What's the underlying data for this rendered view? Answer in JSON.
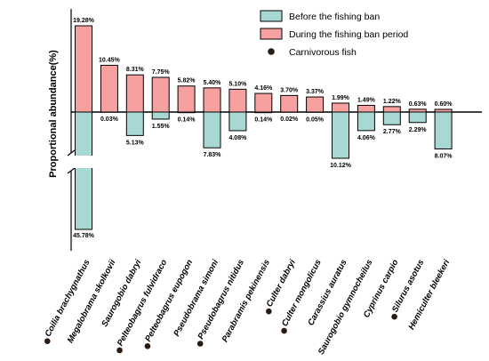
{
  "chart_data": {
    "type": "bar",
    "title": "",
    "xlabel": "",
    "ylabel": "Proportional abundance(%)",
    "categories": [
      "Coilia brachygnathus",
      "Megalobrama skolkovii",
      "Saurogobio dabryi",
      "Pelteobagrus fulvidraco",
      "Pelteobagrus eupogon",
      "Pseudobrama simoni",
      "Pseudobagrus nitidus",
      "Parabramis pekinensis",
      "Culter dabryi",
      "Culter mongolicus",
      "Carassius auratus",
      "Saurogobio gymnocheilus",
      "Cyprinus carpio",
      "Silurus asotus",
      "Hemiculter bleekeri"
    ],
    "carnivorous": [
      true,
      false,
      false,
      true,
      true,
      false,
      true,
      false,
      true,
      true,
      false,
      false,
      false,
      true,
      false
    ],
    "series": [
      {
        "name": "During the fishing ban period",
        "color": "#f7a0a0",
        "direction": "up",
        "values": [
          19.28,
          10.45,
          8.31,
          7.75,
          5.82,
          5.4,
          5.1,
          4.16,
          3.7,
          3.37,
          1.99,
          1.49,
          1.22,
          0.63,
          0.6
        ],
        "labels": [
          "19.28%",
          "10.45%",
          "8.31%",
          "7.75%",
          "5.82%",
          "5.40%",
          "5.10%",
          "4.16%",
          "3.70%",
          "3.37%",
          "1.99%",
          "1.49%",
          "1.22%",
          "0.63%",
          "0.60%"
        ]
      },
      {
        "name": "Before the fishing ban",
        "color": "#a7d8d4",
        "direction": "down",
        "values": [
          45.78,
          0.03,
          5.13,
          1.55,
          0.14,
          7.83,
          4.08,
          0.14,
          0.02,
          0.05,
          10.12,
          4.06,
          2.77,
          2.29,
          8.07
        ],
        "labels": [
          "45.78%",
          "0.03%",
          "5.13%",
          "1.55%",
          "0.14%",
          "7.83%",
          "4.08%",
          "0.14%",
          "0.02%",
          "0.05%",
          "10.12%",
          "4.06%",
          "2.77%",
          "2.29%",
          "8.07%"
        ]
      }
    ],
    "axis_break": true,
    "legend": {
      "position": "top-right",
      "entries": [
        "Before the fishing ban",
        "During the fishing ban period",
        "Carnivorous fish"
      ]
    },
    "grid": false
  }
}
